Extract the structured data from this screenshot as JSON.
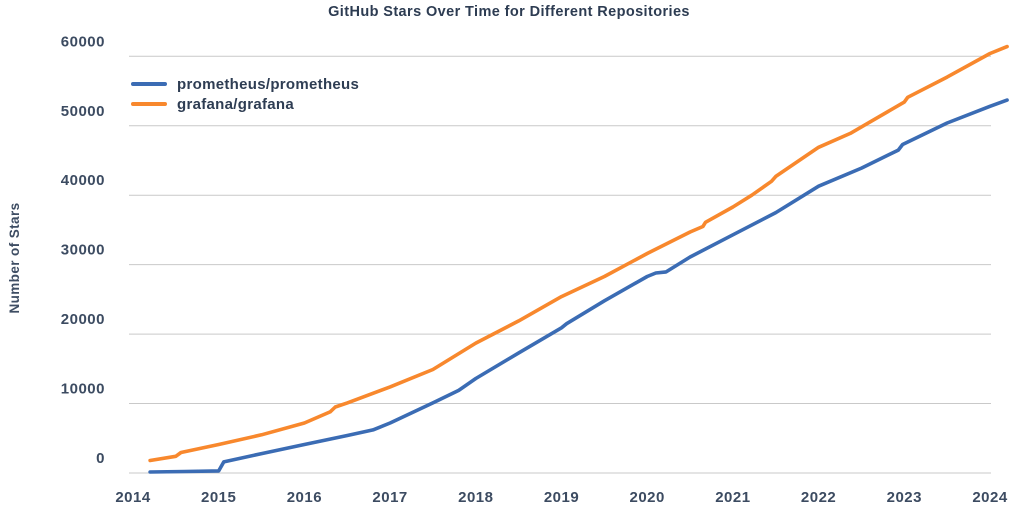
{
  "chart_data": {
    "type": "line",
    "title": "GitHub Stars Over Time for Different Repositories",
    "xlabel": "",
    "ylabel": "Number of Stars",
    "x_ticks": [
      "2014",
      "2015",
      "2016",
      "2017",
      "2018",
      "2019",
      "2020",
      "2021",
      "2022",
      "2023",
      "2024"
    ],
    "y_ticks": [
      0,
      10000,
      20000,
      30000,
      40000,
      50000,
      60000
    ],
    "xlim": [
      2013.95,
      2024.3
    ],
    "ylim": [
      0,
      62000
    ],
    "grid": "horizontal-only",
    "legend_position": "upper-left-inside",
    "background_color": "#ffffff",
    "gridline_color": "#c9c9c9",
    "text_color": "#2d3c52",
    "series": [
      {
        "name": "prometheus/prometheus",
        "color": "#3b6cb4",
        "points": [
          [
            2014.2,
            150
          ],
          [
            2014.6,
            220
          ],
          [
            2015.0,
            300
          ],
          [
            2015.06,
            1600
          ],
          [
            2015.5,
            2800
          ],
          [
            2016.0,
            4100
          ],
          [
            2016.5,
            5400
          ],
          [
            2016.8,
            6200
          ],
          [
            2017.0,
            7200
          ],
          [
            2017.5,
            10100
          ],
          [
            2017.8,
            11900
          ],
          [
            2018.0,
            13600
          ],
          [
            2018.5,
            17300
          ],
          [
            2019.0,
            20900
          ],
          [
            2019.06,
            21500
          ],
          [
            2019.5,
            24800
          ],
          [
            2020.0,
            28300
          ],
          [
            2020.1,
            28800
          ],
          [
            2020.22,
            28950
          ],
          [
            2020.5,
            31100
          ],
          [
            2021.0,
            34300
          ],
          [
            2021.5,
            37500
          ],
          [
            2022.0,
            41300
          ],
          [
            2022.5,
            43900
          ],
          [
            2022.93,
            46500
          ],
          [
            2022.98,
            47300
          ],
          [
            2023.5,
            50400
          ],
          [
            2024.0,
            52800
          ],
          [
            2024.2,
            53700
          ]
        ]
      },
      {
        "name": "grafana/grafana",
        "color": "#f8882d",
        "points": [
          [
            2014.2,
            1800
          ],
          [
            2014.5,
            2400
          ],
          [
            2014.56,
            2950
          ],
          [
            2015.0,
            4100
          ],
          [
            2015.5,
            5500
          ],
          [
            2016.0,
            7200
          ],
          [
            2016.3,
            8800
          ],
          [
            2016.36,
            9500
          ],
          [
            2016.5,
            10100
          ],
          [
            2017.0,
            12400
          ],
          [
            2017.5,
            14900
          ],
          [
            2018.0,
            18700
          ],
          [
            2018.5,
            21900
          ],
          [
            2019.0,
            25400
          ],
          [
            2019.5,
            28300
          ],
          [
            2020.0,
            31600
          ],
          [
            2020.5,
            34700
          ],
          [
            2020.65,
            35500
          ],
          [
            2020.68,
            36100
          ],
          [
            2021.0,
            38300
          ],
          [
            2021.22,
            40000
          ],
          [
            2021.45,
            42000
          ],
          [
            2021.5,
            42700
          ],
          [
            2022.0,
            46900
          ],
          [
            2022.37,
            48900
          ],
          [
            2023.0,
            53400
          ],
          [
            2023.04,
            54100
          ],
          [
            2023.5,
            57000
          ],
          [
            2024.0,
            60400
          ],
          [
            2024.2,
            61400
          ]
        ]
      }
    ]
  }
}
